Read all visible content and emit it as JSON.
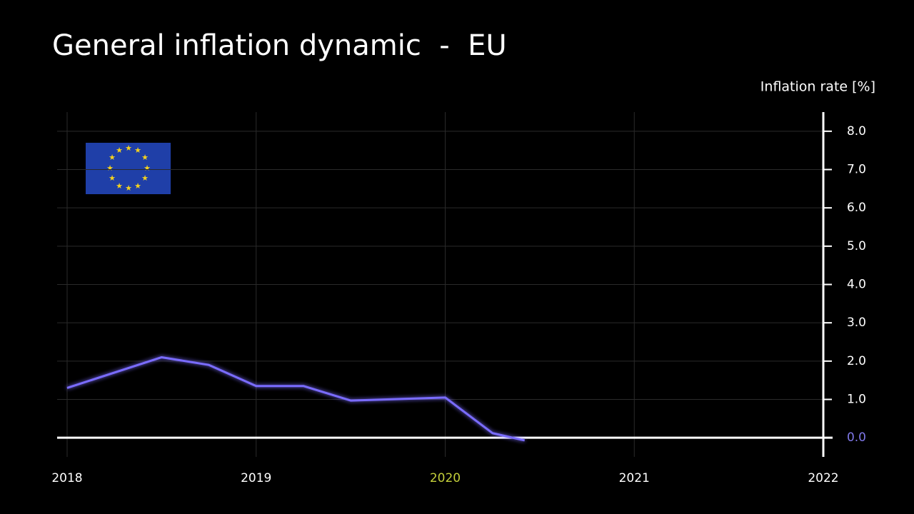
{
  "chart_data": {
    "type": "line",
    "title": "General inflation dynamic  -  EU",
    "y_axis_label": "Inflation rate [%]",
    "x": [
      2018.0,
      2018.5,
      2018.75,
      2019.0,
      2019.25,
      2019.5,
      2020.0,
      2020.25,
      2020.42
    ],
    "values": [
      1.3,
      2.1,
      1.9,
      1.35,
      1.35,
      0.97,
      1.05,
      0.12,
      -0.07
    ],
    "color": "#7a6cff",
    "xlim": [
      2018,
      2022
    ],
    "xticks": [
      2018,
      2019,
      2020,
      2021,
      2022
    ],
    "xtick_colors": [
      "#ffffff",
      "#ffffff",
      "#c3cf3a",
      "#ffffff",
      "#ffffff"
    ],
    "ylim": [
      -0.5,
      8.5
    ],
    "yticks": [
      {
        "value": 0,
        "label": "0.0"
      },
      {
        "value": 1,
        "label": "1.0"
      },
      {
        "value": 2,
        "label": "2.0"
      },
      {
        "value": 3,
        "label": "3.0"
      },
      {
        "value": 4,
        "label": "4.0"
      },
      {
        "value": 5,
        "label": "5.0"
      },
      {
        "value": 6,
        "label": "6.0"
      },
      {
        "value": 7,
        "label": "7.0"
      },
      {
        "value": 8,
        "label": "8.0"
      }
    ],
    "ytick_colors": [
      "#7f78e8",
      "#ffffff",
      "#ffffff",
      "#ffffff",
      "#ffffff",
      "#ffffff",
      "#ffffff",
      "#ffffff",
      "#ffffff"
    ],
    "grid": true
  }
}
